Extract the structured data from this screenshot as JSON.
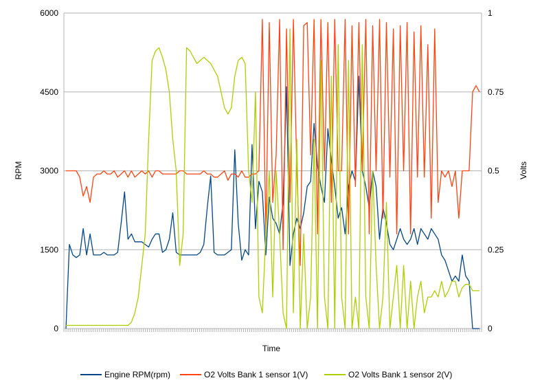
{
  "chart_data": {
    "type": "line",
    "title": "",
    "xlabel": "Time",
    "ylabel_left": "RPM",
    "ylabel_right": "Volts",
    "ylim_left": [
      0,
      6000
    ],
    "ylim_right": [
      0,
      1
    ],
    "yticks_left": [
      "0",
      "1500",
      "3000",
      "4500",
      "6000"
    ],
    "yticks_right": [
      "0",
      "0.25",
      "0.5",
      "0.75",
      "1"
    ],
    "grid": "horizontal",
    "legend_position": "bottom",
    "series": [
      {
        "name": "Engine RPM(rpm)",
        "axis": "left",
        "color": "#004586",
        "x": [
          0,
          1,
          2,
          3,
          4,
          5,
          6,
          7,
          8,
          9,
          10,
          11,
          12,
          13,
          14,
          15,
          16,
          17,
          18,
          19,
          20,
          21,
          22,
          23,
          24,
          25,
          26,
          27,
          28,
          29,
          30,
          31,
          32,
          33,
          34,
          35,
          36,
          37,
          38,
          39,
          40,
          41,
          42,
          43,
          44,
          45,
          46,
          47,
          48,
          49,
          50,
          51,
          52,
          53,
          54,
          55,
          56,
          57,
          58,
          59,
          60,
          61,
          62,
          63,
          64,
          65,
          66,
          67,
          68,
          69,
          70,
          71,
          72,
          73,
          74,
          75,
          76,
          77,
          78,
          79,
          80,
          81,
          82,
          83,
          84,
          85,
          86,
          87,
          88,
          89,
          90,
          91,
          92,
          93,
          94,
          95,
          96,
          97,
          98,
          99,
          100,
          101,
          102,
          103,
          104,
          105,
          106,
          107,
          108,
          109,
          110,
          111,
          112,
          113,
          114,
          115,
          116,
          117,
          118,
          119,
          120
        ],
        "values": [
          0,
          1600,
          1400,
          1350,
          1400,
          1900,
          1400,
          1800,
          1400,
          1400,
          1400,
          1450,
          1400,
          1400,
          1400,
          1450,
          2000,
          2600,
          1700,
          1800,
          1650,
          1650,
          1650,
          1600,
          1550,
          1700,
          1800,
          1800,
          1450,
          1500,
          1700,
          2200,
          1450,
          1400,
          1400,
          1400,
          1400,
          1400,
          1400,
          1450,
          1600,
          2300,
          2900,
          1450,
          1400,
          1400,
          1400,
          1450,
          1500,
          3400,
          2000,
          1300,
          1500,
          1400,
          3500,
          1900,
          2800,
          2600,
          1400,
          2500,
          2100,
          2000,
          1800,
          2400,
          4600,
          1200,
          1800,
          2100,
          1900,
          2200,
          2700,
          2800,
          3900,
          3100,
          2700,
          2400,
          3800,
          3200,
          2700,
          2100,
          2300,
          1800,
          2700,
          3000,
          2800,
          4800,
          3000,
          2700,
          2300,
          3000,
          2700,
          1700,
          2300,
          2000,
          1600,
          1500,
          1700,
          1900,
          1700,
          1600,
          1700,
          1900,
          1600,
          1900,
          1800,
          1700,
          1900,
          1800,
          1700,
          1400,
          1300,
          1100,
          900,
          1000,
          900,
          1400,
          1000,
          900,
          0,
          0,
          0
        ],
        "note": "approximate trace read from chart"
      },
      {
        "name": "O2 Volts Bank 1 sensor 1(V)",
        "axis": "right",
        "color": "#ff420e",
        "x": [
          0,
          1,
          2,
          3,
          4,
          5,
          6,
          7,
          8,
          9,
          10,
          11,
          12,
          13,
          14,
          15,
          16,
          17,
          18,
          19,
          20,
          21,
          22,
          23,
          24,
          25,
          26,
          27,
          28,
          29,
          30,
          31,
          32,
          33,
          34,
          35,
          36,
          37,
          38,
          39,
          40,
          41,
          42,
          43,
          44,
          45,
          46,
          47,
          48,
          49,
          50,
          51,
          52,
          53,
          54,
          55,
          56,
          57,
          58,
          59,
          60,
          61,
          62,
          63,
          64,
          65,
          66,
          67,
          68,
          69,
          70,
          71,
          72,
          73,
          74,
          75,
          76,
          77,
          78,
          79,
          80,
          81,
          82,
          83,
          84,
          85,
          86,
          87,
          88,
          89,
          90,
          91,
          92,
          93,
          94,
          95,
          96,
          97,
          98,
          99,
          100,
          101,
          102,
          103,
          104,
          105,
          106,
          107,
          108,
          109,
          110,
          111,
          112,
          113,
          114,
          115,
          116,
          117,
          118,
          119,
          120
        ],
        "values": [
          0.5,
          0.5,
          0.5,
          0.5,
          0.48,
          0.42,
          0.45,
          0.4,
          0.48,
          0.49,
          0.49,
          0.5,
          0.49,
          0.49,
          0.5,
          0.48,
          0.49,
          0.5,
          0.48,
          0.5,
          0.48,
          0.49,
          0.5,
          0.49,
          0.5,
          0.48,
          0.5,
          0.5,
          0.49,
          0.49,
          0.49,
          0.49,
          0.49,
          0.5,
          0.5,
          0.49,
          0.49,
          0.49,
          0.49,
          0.49,
          0.5,
          0.49,
          0.49,
          0.48,
          0.48,
          0.49,
          0.5,
          0.47,
          0.49,
          0.49,
          0.48,
          0.5,
          0.48,
          0.48,
          0.49,
          0.49,
          0.5,
          0.98,
          0.3,
          0.97,
          0.4,
          0.55,
          0.98,
          0.25,
          0.95,
          0.4,
          0.98,
          0.5,
          0.2,
          0.96,
          0.97,
          0.55,
          0.98,
          0.3,
          0.98,
          0.5,
          0.97,
          0.4,
          0.98,
          0.5,
          0.5,
          0.98,
          0.3,
          0.96,
          0.45,
          0.97,
          0.5,
          0.98,
          0.3,
          0.96,
          0.5,
          0.98,
          0.35,
          0.97,
          0.48,
          0.95,
          0.3,
          0.96,
          0.5,
          0.97,
          0.3,
          0.94,
          0.48,
          0.96,
          0.48,
          0.9,
          0.35,
          0.95,
          0.4,
          0.5,
          0.48,
          0.5,
          0.45,
          0.5,
          0.35,
          0.5,
          0.5,
          0.5,
          0.75,
          0.77,
          0.75
        ],
        "note": "approximate trace read from chart"
      },
      {
        "name": "O2 Volts Bank 1 sensor 2(V)",
        "axis": "right",
        "color": "#aecf00",
        "x": [
          0,
          1,
          2,
          3,
          4,
          5,
          6,
          7,
          8,
          9,
          10,
          11,
          12,
          13,
          14,
          15,
          16,
          17,
          18,
          19,
          20,
          21,
          22,
          23,
          24,
          25,
          26,
          27,
          28,
          29,
          30,
          31,
          32,
          33,
          34,
          35,
          36,
          37,
          38,
          39,
          40,
          41,
          42,
          43,
          44,
          45,
          46,
          47,
          48,
          49,
          50,
          51,
          52,
          53,
          54,
          55,
          56,
          57,
          58,
          59,
          60,
          61,
          62,
          63,
          64,
          65,
          66,
          67,
          68,
          69,
          70,
          71,
          72,
          73,
          74,
          75,
          76,
          77,
          78,
          79,
          80,
          81,
          82,
          83,
          84,
          85,
          86,
          87,
          88,
          89,
          90,
          91,
          92,
          93,
          94,
          95,
          96,
          97,
          98,
          99,
          100,
          101,
          102,
          103,
          104,
          105,
          106,
          107,
          108,
          109,
          110,
          111,
          112,
          113,
          114,
          115,
          116,
          117,
          118,
          119,
          120
        ],
        "values": [
          0.01,
          0.01,
          0.01,
          0.01,
          0.01,
          0.01,
          0.01,
          0.01,
          0.01,
          0.01,
          0.01,
          0.01,
          0.01,
          0.01,
          0.01,
          0.01,
          0.01,
          0.01,
          0.01,
          0.02,
          0.05,
          0.1,
          0.2,
          0.3,
          0.6,
          0.85,
          0.88,
          0.89,
          0.86,
          0.82,
          0.75,
          0.6,
          0.5,
          0.2,
          0.3,
          0.89,
          0.88,
          0.86,
          0.84,
          0.85,
          0.86,
          0.85,
          0.84,
          0.82,
          0.8,
          0.75,
          0.7,
          0.68,
          0.7,
          0.8,
          0.85,
          0.86,
          0.84,
          0.5,
          0.4,
          0.75,
          0.1,
          0.05,
          0.3,
          0.5,
          0.1,
          0.5,
          0.3,
          0.05,
          0.0,
          0.95,
          0.05,
          0.6,
          0.0,
          0.3,
          0.0,
          0.1,
          0.6,
          0.0,
          0.85,
          0.1,
          0.0,
          0.8,
          0.0,
          0.9,
          0.1,
          0.0,
          0.85,
          0.0,
          0.1,
          0.0,
          0.9,
          0.1,
          0.0,
          0.5,
          0.2,
          0.0,
          0.1,
          0.4,
          0.0,
          0.1,
          0.2,
          0.0,
          0.2,
          0.0,
          0.15,
          0.0,
          0.1,
          0.15,
          0.05,
          0.1,
          0.1,
          0.12,
          0.1,
          0.15,
          0.1,
          0.12,
          0.15,
          0.15,
          0.1,
          0.13,
          0.14,
          0.14,
          0.12,
          0.12,
          0.12
        ],
        "note": "approximate trace read from chart"
      }
    ]
  }
}
